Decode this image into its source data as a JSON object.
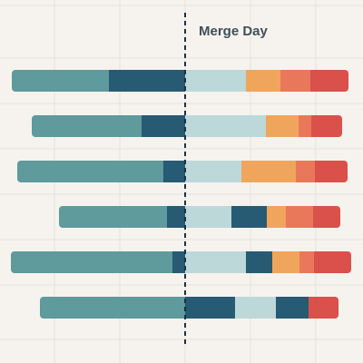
{
  "chart_data": {
    "type": "bar",
    "subtype": "diverging-stacked-horizontal",
    "divider_label": "Merge Day",
    "x_range": [
      -192,
      192
    ],
    "grid": true,
    "legend": "none",
    "rows": [
      {
        "left": [
          {
            "key": "teal",
            "value": 107
          },
          {
            "key": "navy",
            "value": 84
          }
        ],
        "right": [
          {
            "key": "pale",
            "value": 67
          },
          {
            "key": "orange",
            "value": 38
          },
          {
            "key": "coral",
            "value": 33
          },
          {
            "key": "red",
            "value": 42
          }
        ]
      },
      {
        "left": [
          {
            "key": "teal",
            "value": 121
          },
          {
            "key": "navy",
            "value": 48
          }
        ],
        "right": [
          {
            "key": "pale",
            "value": 89
          },
          {
            "key": "orange",
            "value": 36
          },
          {
            "key": "coral",
            "value": 14
          },
          {
            "key": "red",
            "value": 34
          }
        ]
      },
      {
        "left": [
          {
            "key": "teal",
            "value": 161
          },
          {
            "key": "navy",
            "value": 24
          }
        ],
        "right": [
          {
            "key": "pale",
            "value": 62
          },
          {
            "key": "orange",
            "value": 60
          },
          {
            "key": "coral",
            "value": 21
          },
          {
            "key": "red",
            "value": 36
          }
        ]
      },
      {
        "left": [
          {
            "key": "teal",
            "value": 119
          },
          {
            "key": "navy",
            "value": 20
          }
        ],
        "right": [
          {
            "key": "pale",
            "value": 51
          },
          {
            "key": "navy",
            "value": 39
          },
          {
            "key": "orange",
            "value": 21
          },
          {
            "key": "coral",
            "value": 30
          },
          {
            "key": "red",
            "value": 30
          }
        ]
      },
      {
        "left": [
          {
            "key": "teal",
            "value": 178
          },
          {
            "key": "navy",
            "value": 14
          }
        ],
        "right": [
          {
            "key": "pale",
            "value": 67
          },
          {
            "key": "navy",
            "value": 29
          },
          {
            "key": "orange",
            "value": 30
          },
          {
            "key": "coral",
            "value": 16
          },
          {
            "key": "red",
            "value": 41
          }
        ]
      },
      {
        "left": [
          {
            "key": "teal",
            "value": 160
          }
        ],
        "right": [
          {
            "key": "navy",
            "value": 55
          },
          {
            "key": "pale",
            "value": 45
          },
          {
            "key": "navy",
            "value": 36
          },
          {
            "key": "red",
            "value": 33
          }
        ]
      }
    ],
    "colors": {
      "teal": "#5f9a9c",
      "navy": "#275a73",
      "pale": "#bdd8d9",
      "orange": "#f0a55c",
      "coral": "#e9785a",
      "red": "#d9514a",
      "grid": "#e5e1da",
      "divider": "#1c2f4a",
      "background": "#f6f3ee"
    }
  }
}
